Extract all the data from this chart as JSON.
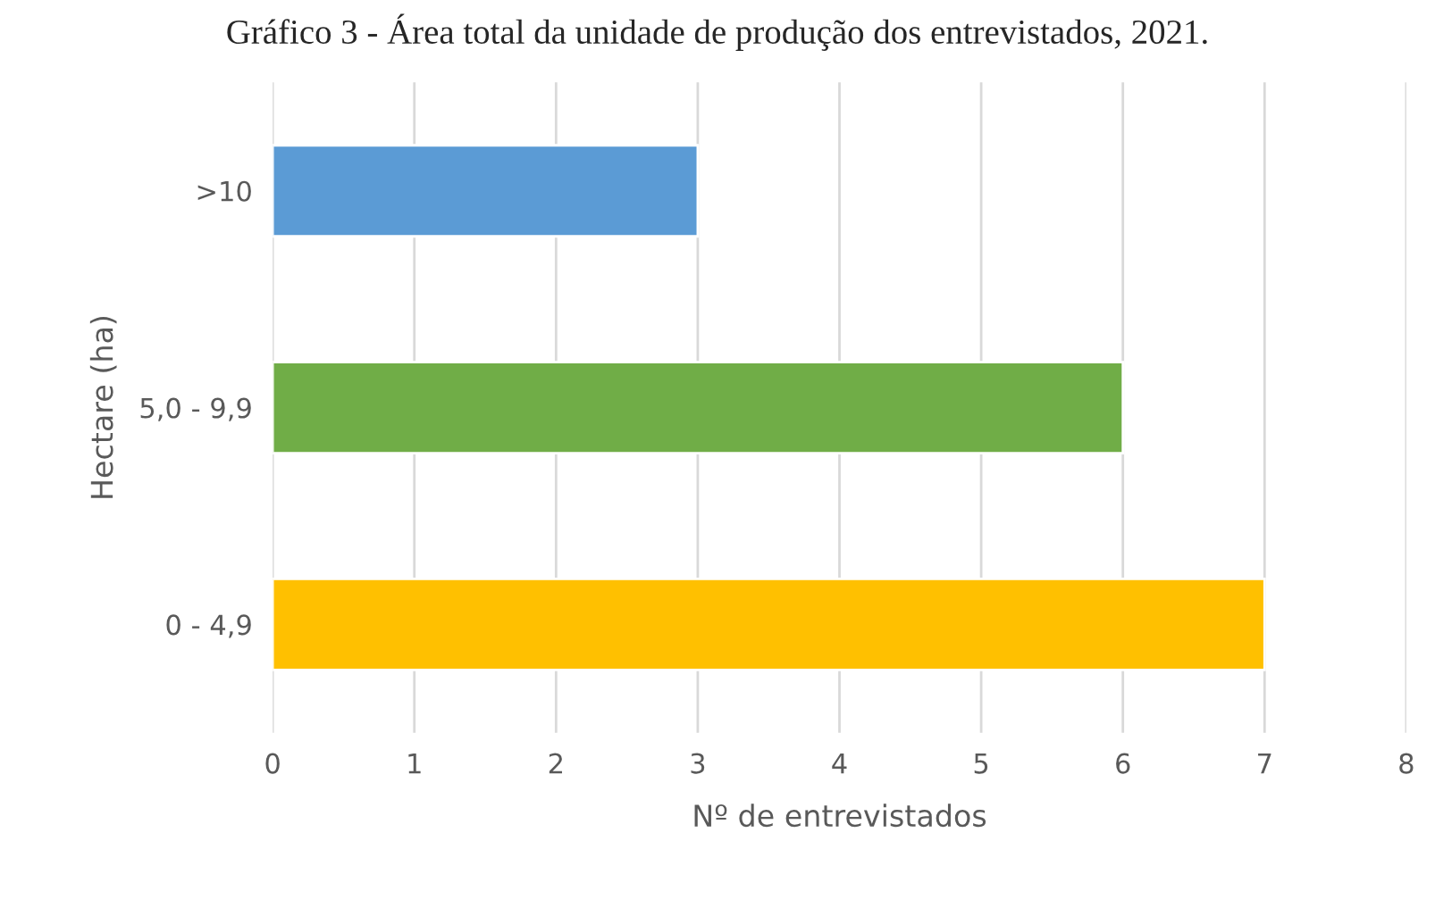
{
  "chart_data": {
    "type": "bar",
    "orientation": "horizontal",
    "title": "Gráfico 3 - Área total da unidade de produção dos entrevistados, 2021.",
    "categories": [
      ">10",
      "5,0 - 9,9",
      "0 - 4,9"
    ],
    "values": [
      3,
      6,
      7
    ],
    "colors": [
      "#5b9bd5",
      "#70ad47",
      "#ffc000"
    ],
    "xlabel": "Nº de entrevistados",
    "ylabel": "Hectare (ha)",
    "xlim": [
      0,
      8
    ],
    "xticks": [
      0,
      1,
      2,
      3,
      4,
      5,
      6,
      7,
      8
    ],
    "grid": "x",
    "legend": false
  }
}
